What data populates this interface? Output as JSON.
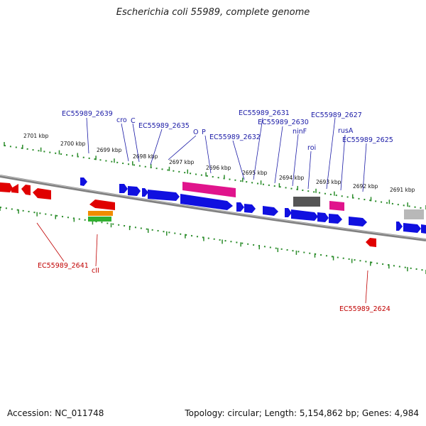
{
  "title": "Escherichia coli 55989, complete genome",
  "footer": {
    "accession": "Accession: NC_011748",
    "summary": "Topology: circular; Length: 5,154,862 bp; Genes: 4,984"
  },
  "colors": {
    "forward": "#1010e0",
    "reverse": "#e00000",
    "magenta": "#e0148c",
    "dark_gray": "#555555",
    "light_gray": "#b8b8b8",
    "orange": "#f08c00",
    "green": "#30b030",
    "backbone": "#808080",
    "tick": "#2a8c2a",
    "label_blue": "#1a1aa6",
    "label_red": "#c00000"
  },
  "scale_labels": [
    "2701 kbp",
    "2700 kbp",
    "2699 kbp",
    "2698 kbp",
    "2697 kbp",
    "2696 kbp",
    "2695 kbp",
    "2694 kbp",
    "2693 kbp",
    "2692 kbp",
    "2691 kbp"
  ],
  "upper_labels": [
    {
      "text": "EC55989_2639"
    },
    {
      "text": "cro"
    },
    {
      "text": "C"
    },
    {
      "text": "EC55989_2635"
    },
    {
      "text": "O"
    },
    {
      "text": "P"
    },
    {
      "text": "EC55989_2632"
    },
    {
      "text": "EC55989_2631"
    },
    {
      "text": "EC55989_2630"
    },
    {
      "text": "ninF"
    },
    {
      "text": "roi"
    },
    {
      "text": "EC55989_2627"
    },
    {
      "text": "rusA"
    },
    {
      "text": "EC55989_2625"
    }
  ],
  "lower_labels": [
    {
      "text": "EC55989_2641"
    },
    {
      "text": "cII"
    },
    {
      "text": "EC55989_2624"
    }
  ]
}
